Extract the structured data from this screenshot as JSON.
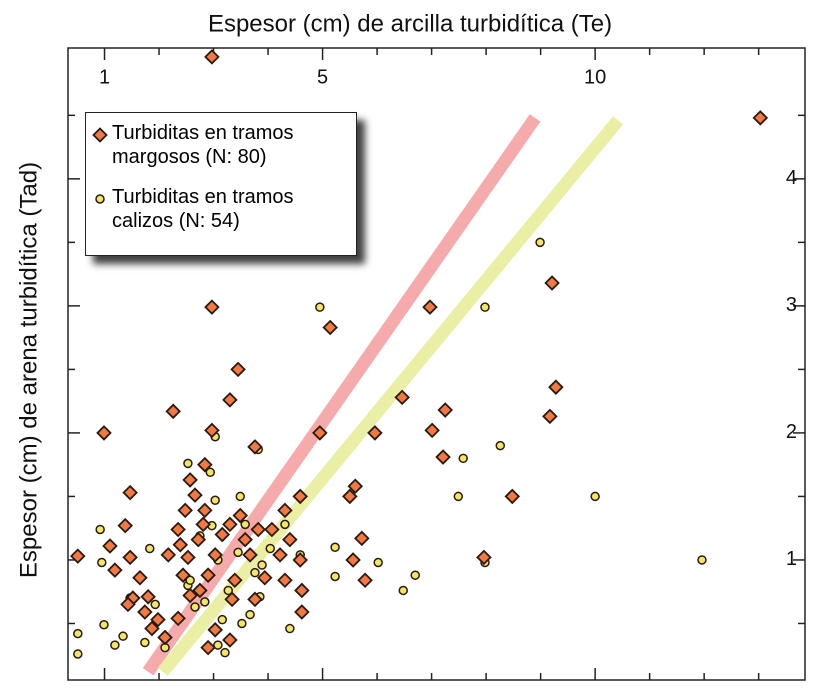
{
  "chart_data": {
    "type": "scatter",
    "title": "Espesor (cm) de arcilla turbidítica (Te)",
    "y_label": "Espesor (cm) de arena turbidítica (Tad)",
    "xlim": [
      0.33,
      13.85
    ],
    "xticks": [
      1,
      5,
      10
    ],
    "xminor_ticks": [
      2,
      3,
      4,
      6,
      7,
      8,
      9,
      11,
      12,
      13
    ],
    "ylim": [
      0.055,
      5.03
    ],
    "yticks": [
      1,
      2,
      3,
      4
    ],
    "yminor_ticks": [
      0.5,
      1.5,
      2.5,
      3.5,
      4.5
    ],
    "legend": "upper left",
    "series": [
      {
        "name": "Turbiditas en tramos margosos (N: 80)",
        "color": "#f07a45",
        "marker": "diamond",
        "x": [
          2.97,
          13.03,
          2.97,
          5.14,
          3.45,
          3.3,
          2.26,
          0.99,
          2.97,
          3.76,
          4.95,
          5.96,
          7.01,
          7.25,
          7.21,
          6.46,
          6.97,
          9.21,
          9.28,
          9.17,
          8.48,
          7.96,
          2.84,
          2.57,
          1.47,
          2.66,
          3.49,
          4.59,
          5.5,
          5.6,
          5.72,
          5.56,
          5.78,
          0.51,
          1.1,
          1.38,
          1.47,
          1.19,
          1.65,
          1.52,
          1.43,
          1.8,
          1.74,
          1.98,
          2.11,
          2.35,
          2.39,
          2.17,
          2.44,
          2.53,
          2.72,
          2.81,
          2.84,
          2.48,
          3.03,
          2.9,
          2.75,
          2.57,
          3.16,
          3.3,
          3.58,
          3.67,
          3.82,
          3.39,
          3.34,
          3.03,
          2.9,
          3.3,
          3.76,
          3.94,
          4.22,
          4.31,
          4.07,
          4.31,
          4.4,
          4.59,
          4.62,
          4.62,
          2.35,
          1.87
        ],
        "values": [
          4.96,
          4.48,
          2.99,
          2.83,
          2.5,
          2.26,
          2.17,
          2.0,
          2.02,
          1.89,
          2.0,
          2.0,
          2.02,
          2.18,
          1.81,
          2.28,
          2.99,
          3.18,
          2.36,
          2.13,
          1.5,
          1.02,
          1.75,
          1.63,
          1.53,
          1.51,
          1.35,
          1.5,
          1.5,
          1.58,
          1.17,
          1.0,
          0.84,
          1.03,
          1.11,
          1.27,
          1.02,
          0.92,
          0.86,
          0.7,
          0.65,
          0.71,
          0.59,
          0.53,
          0.39,
          1.24,
          1.12,
          1.04,
          0.88,
          1.02,
          1.16,
          1.28,
          1.39,
          1.39,
          1.04,
          0.88,
          0.76,
          0.72,
          1.2,
          1.28,
          1.16,
          1.04,
          1.24,
          0.84,
          0.69,
          0.45,
          0.31,
          0.37,
          0.69,
          0.86,
          1.04,
          0.84,
          1.24,
          1.39,
          1.16,
          1.0,
          0.76,
          0.59,
          0.54,
          0.46
        ]
      },
      {
        "name": "Turbiditas en tramos calizos (N: 54)",
        "color": "#f2e66a",
        "marker": "circle",
        "x": [
          8.99,
          7.98,
          4.95,
          8.26,
          7.58,
          7.49,
          10.0,
          11.96,
          7.98,
          6.7,
          6.48,
          6.02,
          5.23,
          5.23,
          4.4,
          3.67,
          0.92,
          1.83,
          1.34,
          0.51,
          0.51,
          0.99,
          1.19,
          0.95,
          3.03,
          3.82,
          2.94,
          2.53,
          3.03,
          3.49,
          3.58,
          2.97,
          2.75,
          3.08,
          2.53,
          2.66,
          3.27,
          3.76,
          3.89,
          3.45,
          2.84,
          3.16,
          3.52,
          3.21,
          3.08,
          2.11,
          1.74,
          1.93,
          1.47,
          3.85,
          4.31,
          4.04,
          4.59,
          2.57
        ],
        "values": [
          3.5,
          2.99,
          2.99,
          1.9,
          1.8,
          1.5,
          1.5,
          1.0,
          0.98,
          0.88,
          0.76,
          0.98,
          1.1,
          0.87,
          0.46,
          0.57,
          1.24,
          1.09,
          0.4,
          0.42,
          0.26,
          0.49,
          0.33,
          0.98,
          1.97,
          1.87,
          1.69,
          1.76,
          1.47,
          1.5,
          1.28,
          1.27,
          1.19,
          1.0,
          0.8,
          0.63,
          0.76,
          0.9,
          0.96,
          1.06,
          0.67,
          0.53,
          0.5,
          0.27,
          0.33,
          0.31,
          0.35,
          0.65,
          0.7,
          0.71,
          1.28,
          1.09,
          1.04,
          0.84
        ]
      }
    ],
    "trend_lines": [
      {
        "color": "#f4a3a3",
        "x": [
          1.8,
          8.9
        ],
        "y": [
          0.12,
          4.48
        ]
      },
      {
        "color": "#e9ee9c",
        "x": [
          2.07,
          10.42
        ],
        "y": [
          0.12,
          4.46
        ]
      }
    ]
  }
}
